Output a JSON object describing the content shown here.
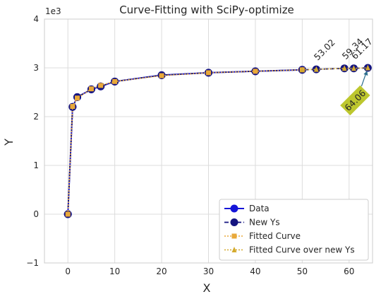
{
  "chart_data": {
    "type": "line",
    "title": "Curve-Fitting with SciPy-optimize",
    "xlabel": "X",
    "ylabel": "Y",
    "y_scale_label": "1e3",
    "xlim": [
      -5,
      65
    ],
    "ylim": [
      -1,
      4
    ],
    "x_ticks": [
      0,
      10,
      20,
      30,
      40,
      50,
      60
    ],
    "y_ticks": [
      -1,
      0,
      1,
      2,
      3,
      4
    ],
    "x_tick_labels": [
      "0",
      "10",
      "20",
      "30",
      "40",
      "50",
      "60"
    ],
    "y_tick_labels": [
      "−1",
      "0",
      "1",
      "2",
      "3",
      "4"
    ],
    "grid": true,
    "legend_position": "lower-right",
    "series": [
      {
        "name": "Data",
        "color": "#1515d8",
        "marker": "circle",
        "linestyle": "solid",
        "x": [
          0,
          1,
          2,
          5,
          7,
          10,
          20,
          30,
          40,
          50
        ],
        "y": [
          0,
          2.2,
          2.4,
          2.56,
          2.62,
          2.72,
          2.85,
          2.9,
          2.93,
          2.96
        ]
      },
      {
        "name": "New Ys",
        "color": "#141480",
        "marker": "circle",
        "linestyle": "dashed",
        "x": [
          0,
          1,
          2,
          5,
          7,
          10,
          20,
          30,
          40,
          50,
          53,
          59,
          61,
          64
        ],
        "y": [
          0,
          2.2,
          2.4,
          2.56,
          2.62,
          2.72,
          2.85,
          2.9,
          2.93,
          2.96,
          2.97,
          2.99,
          2.99,
          3.0
        ]
      },
      {
        "name": "Fitted Curve",
        "color": "#e8a83a",
        "marker": "square",
        "linestyle": "dotted",
        "x": [
          0,
          1,
          2,
          5,
          7,
          10,
          20,
          30,
          40,
          50
        ],
        "y": [
          0,
          2.21,
          2.38,
          2.57,
          2.64,
          2.72,
          2.84,
          2.9,
          2.93,
          2.96
        ]
      },
      {
        "name": "Fitted Curve over new Ys",
        "color": "#d4aa2e",
        "marker": "triangle",
        "linestyle": "dotted",
        "x": [
          50,
          53,
          59,
          61,
          64
        ],
        "y": [
          2.96,
          2.97,
          2.99,
          2.99,
          3.0
        ]
      }
    ],
    "annotations": [
      {
        "text": "53.02",
        "x": 53,
        "y": 2.97,
        "boxed": false
      },
      {
        "text": "59.34",
        "x": 59,
        "y": 2.99,
        "boxed": false
      },
      {
        "text": "61.17",
        "x": 61,
        "y": 2.99,
        "boxed": false
      },
      {
        "text": "64.06",
        "x": 64,
        "y": 3.0,
        "boxed": true,
        "box_color": "#bdc72e",
        "arrow": true
      }
    ]
  }
}
